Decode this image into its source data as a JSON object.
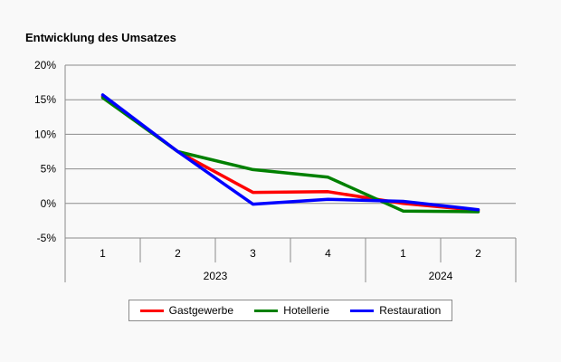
{
  "chart_data": {
    "type": "line",
    "title": "Entwicklung des Umsatzes",
    "xlabel": "",
    "ylabel": "",
    "ylim": [
      -5,
      20
    ],
    "yticks": [
      -5,
      0,
      5,
      10,
      15,
      20
    ],
    "ytick_labels": [
      "-5%",
      "0%",
      "5%",
      "10%",
      "15%",
      "20%"
    ],
    "categories": [
      "1",
      "2",
      "3",
      "4",
      "1",
      "2"
    ],
    "groups": [
      {
        "label": "2023",
        "span": [
          0,
          3
        ]
      },
      {
        "label": "2024",
        "span": [
          4,
          5
        ]
      }
    ],
    "grid": true,
    "legend_position": "bottom",
    "series": [
      {
        "name": "Gastgewerbe",
        "color": "#ff0000",
        "values": [
          15.5,
          7.5,
          1.6,
          1.7,
          0.0,
          -1.0
        ]
      },
      {
        "name": "Hotellerie",
        "color": "#008000",
        "values": [
          15.3,
          7.5,
          4.9,
          3.8,
          -1.1,
          -1.2
        ]
      },
      {
        "name": "Restauration",
        "color": "#0000ff",
        "values": [
          15.7,
          7.5,
          -0.1,
          0.6,
          0.3,
          -0.9
        ]
      }
    ]
  }
}
